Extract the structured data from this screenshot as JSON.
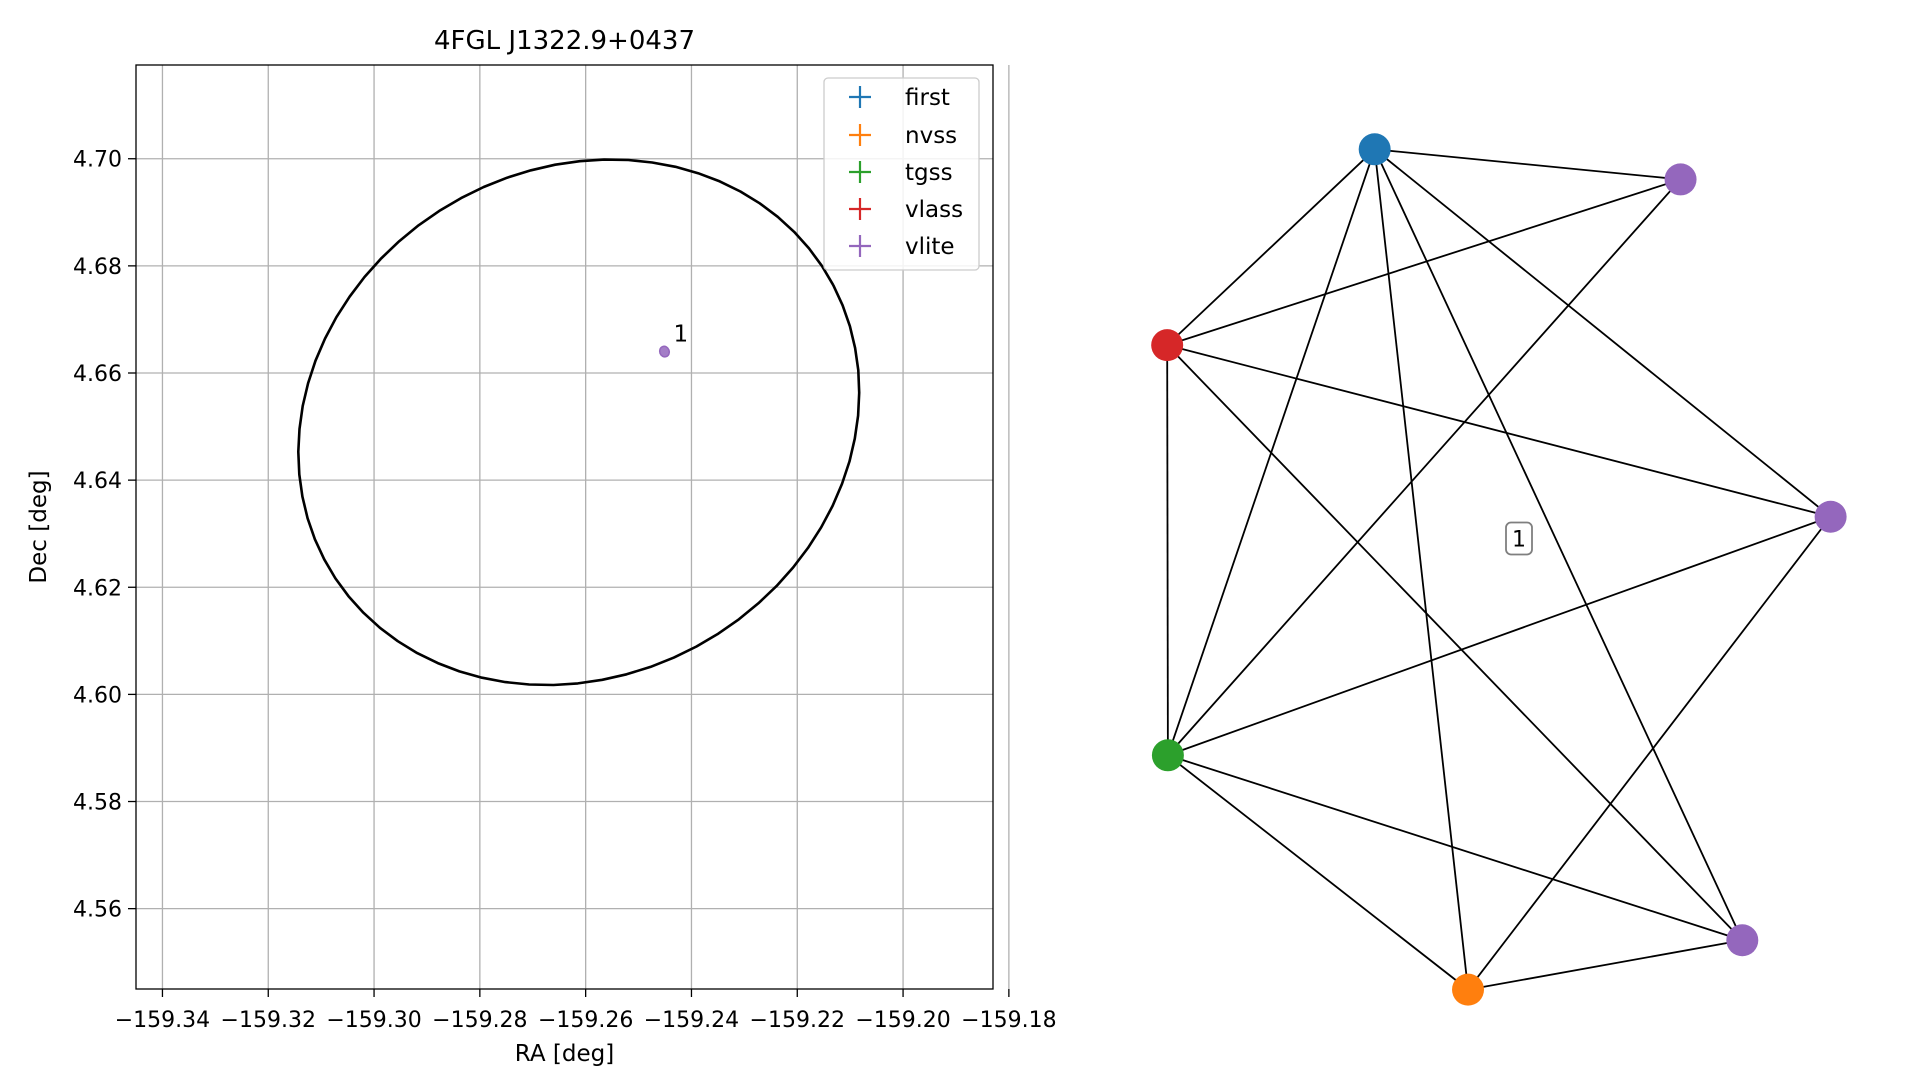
{
  "chart_data": [
    {
      "type": "scatter",
      "title": "4FGL J1322.9+0437",
      "xlabel": "RA [deg]",
      "ylabel": "Dec [deg]",
      "xlim": [
        -159.345,
        -159.183
      ],
      "ylim": [
        4.545,
        4.7175
      ],
      "xticks": [
        -159.34,
        -159.32,
        -159.3,
        -159.28,
        -159.26,
        -159.24,
        -159.22,
        -159.2,
        -159.18
      ],
      "xtick_labels": [
        "−159.34",
        "−159.32",
        "−159.30",
        "−159.28",
        "−159.26",
        "−159.24",
        "−159.22",
        "−159.20",
        "−159.18"
      ],
      "yticks": [
        4.56,
        4.58,
        4.6,
        4.62,
        4.64,
        4.66,
        4.68,
        4.7
      ],
      "ytick_labels": [
        "4.56",
        "4.58",
        "4.60",
        "4.62",
        "4.64",
        "4.66",
        "4.68",
        "4.70"
      ],
      "grid": true,
      "legend_position": "top-right",
      "legend": [
        {
          "label": "first",
          "color": "#1f77b4"
        },
        {
          "label": "nvss",
          "color": "#ff7f0e"
        },
        {
          "label": "tgss",
          "color": "#2ca02c"
        },
        {
          "label": "vlass",
          "color": "#d62728"
        },
        {
          "label": "vlite",
          "color": "#9467bd"
        }
      ],
      "ellipse": {
        "center": [
          -159.2613,
          4.6508
        ],
        "semi_ra": 0.0545,
        "semi_dec": 0.0474,
        "rotation_deg": 28,
        "color": "#000000"
      },
      "sources": [
        {
          "x": -159.2451,
          "y": 4.664,
          "rx": 0.0009,
          "ry": 0.001,
          "color": "#9467bd",
          "label": "1"
        }
      ]
    },
    {
      "type": "network",
      "nodes": [
        {
          "id": "blue",
          "color": "#1f77b4",
          "x": 0.299,
          "y": 0.965
        },
        {
          "id": "purple_top",
          "color": "#9467bd",
          "x": 0.725,
          "y": 0.929
        },
        {
          "id": "red",
          "color": "#d62728",
          "x": 0.01,
          "y": 0.731
        },
        {
          "id": "purple_right",
          "color": "#9467bd",
          "x": 0.934,
          "y": 0.526
        },
        {
          "id": "green",
          "color": "#2ca02c",
          "x": 0.011,
          "y": 0.241
        },
        {
          "id": "purple_bottom",
          "color": "#9467bd",
          "x": 0.811,
          "y": 0.02
        },
        {
          "id": "orange",
          "color": "#ff7f0e",
          "x": 0.429,
          "y": -0.039
        }
      ],
      "edges": [
        [
          "blue",
          "purple_top"
        ],
        [
          "blue",
          "red"
        ],
        [
          "blue",
          "green"
        ],
        [
          "blue",
          "orange"
        ],
        [
          "blue",
          "purple_right"
        ],
        [
          "blue",
          "purple_bottom"
        ],
        [
          "red",
          "purple_top"
        ],
        [
          "red",
          "green"
        ],
        [
          "red",
          "purple_right"
        ],
        [
          "red",
          "purple_bottom"
        ],
        [
          "purple_top",
          "green"
        ],
        [
          "green",
          "purple_right"
        ],
        [
          "green",
          "orange"
        ],
        [
          "green",
          "purple_bottom"
        ],
        [
          "purple_right",
          "orange"
        ],
        [
          "orange",
          "purple_bottom"
        ]
      ],
      "annotation": {
        "label": "1",
        "x": 0.5,
        "y": 0.5
      }
    }
  ]
}
